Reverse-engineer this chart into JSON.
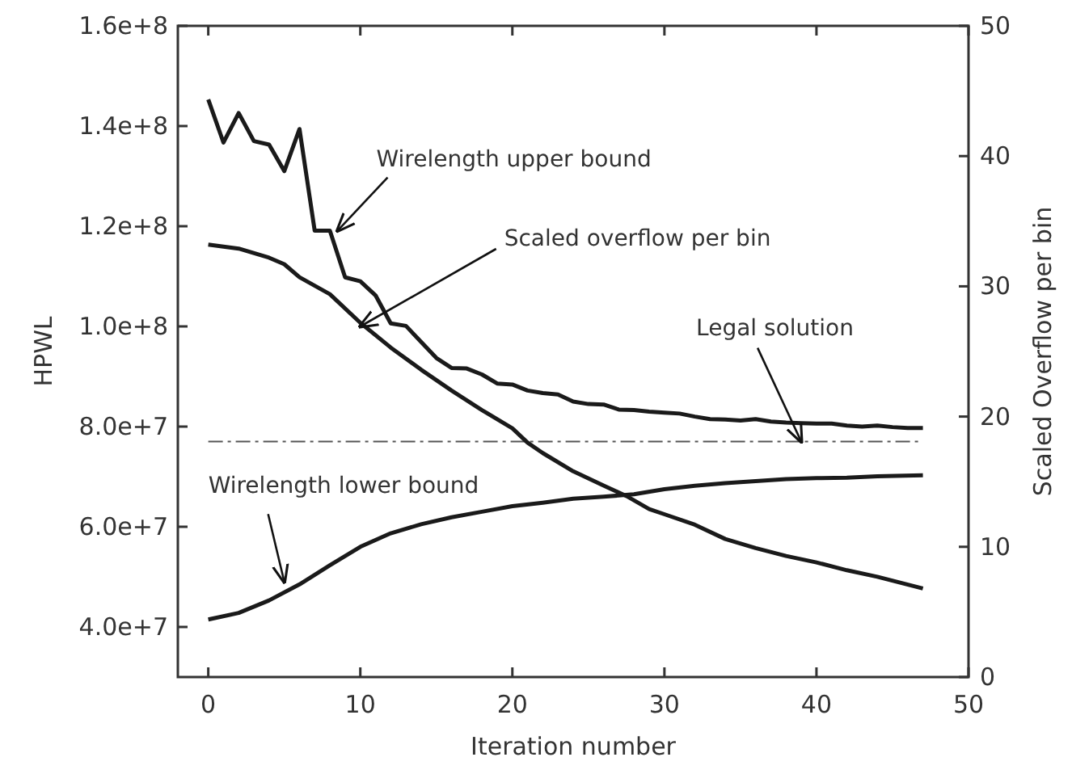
{
  "chart_data": {
    "type": "line",
    "xlabel": "Iteration number",
    "ylabel": "HPWL",
    "y2label": "Scaled Overflow per bin",
    "xlim": [
      -2,
      50
    ],
    "xticks": [
      0,
      10,
      20,
      30,
      40,
      50
    ],
    "ylim": [
      30000000,
      160000000
    ],
    "yticks": [
      {
        "value": 40000000,
        "label": "4.0e+7"
      },
      {
        "value": 60000000,
        "label": "6.0e+7"
      },
      {
        "value": 80000000,
        "label": "8.0e+7"
      },
      {
        "value": 100000000,
        "label": "1.0e+8"
      },
      {
        "value": 120000000,
        "label": "1.2e+8"
      },
      {
        "value": 140000000,
        "label": "1.4e+8"
      },
      {
        "value": 160000000,
        "label": "1.6e+8"
      }
    ],
    "y2lim": [
      0,
      50
    ],
    "y2ticks": [
      0,
      10,
      20,
      30,
      40,
      50
    ],
    "grid": false,
    "marker": "none",
    "line_style": "solid",
    "series": [
      {
        "color": "#1a1a1a",
        "x": [
          0,
          1,
          2,
          3,
          4,
          5,
          6,
          7,
          8,
          9,
          10,
          11,
          12,
          13,
          14,
          15,
          16,
          17,
          18,
          19,
          20,
          21,
          22,
          23,
          24,
          25,
          26,
          27,
          28,
          29,
          30,
          31,
          32,
          33,
          34,
          35,
          36,
          37,
          38,
          39,
          40,
          41,
          42,
          43,
          44,
          45,
          46,
          47
        ],
        "values": [
          145300000,
          136700000,
          142600000,
          137000000,
          136300000,
          131000000,
          139400000,
          119100000,
          119100000,
          109800000,
          109000000,
          106200000,
          100600000,
          100100000,
          96900000,
          93700000,
          91700000,
          91600000,
          90400000,
          88600000,
          88400000,
          87200000,
          86700000,
          86400000,
          85000000,
          84500000,
          84400000,
          83400000,
          83300000,
          83000000,
          82800000,
          82600000,
          82000000,
          81500000,
          81400000,
          81200000,
          81500000,
          81000000,
          80800000,
          80700000,
          80600000,
          80600000,
          80200000,
          80000000,
          80200000,
          79900000,
          79700000,
          79700000
        ]
      },
      {
        "color": "#1a1a1a",
        "x": [
          0,
          2,
          4,
          6,
          8,
          10,
          12,
          14,
          16,
          18,
          20,
          22,
          24,
          26,
          28,
          30,
          32,
          34,
          36,
          38,
          40,
          42,
          44,
          47
        ],
        "values": [
          41500000,
          42800000,
          45300000,
          48500000,
          52300000,
          56000000,
          58700000,
          60500000,
          61900000,
          63000000,
          64100000,
          64800000,
          65600000,
          66000000,
          66500000,
          67500000,
          68200000,
          68700000,
          69100000,
          69500000,
          69700000,
          69800000,
          70100000,
          70300000
        ]
      },
      {
        "color": "#1a1a1a",
        "axis": "y2",
        "x": [
          0,
          2,
          4,
          5,
          6,
          8,
          10,
          12,
          14,
          16,
          18,
          20,
          21,
          22,
          24,
          26,
          27.5,
          29,
          30,
          32,
          34,
          36,
          38,
          40,
          42,
          44,
          47
        ],
        "values": [
          33.2,
          32.9,
          32.2,
          31.7,
          30.7,
          29.4,
          27.2,
          25.3,
          23.6,
          22.0,
          20.5,
          19.1,
          18.0,
          17.2,
          15.8,
          14.7,
          13.9,
          12.9,
          12.5,
          11.7,
          10.6,
          9.9,
          9.3,
          8.8,
          8.2,
          7.7,
          6.8
        ]
      }
    ],
    "ref_lines": [
      {
        "axis": "y",
        "value": 77000000,
        "color": "#555555",
        "line_style": "dashdot"
      }
    ],
    "annotations": [
      {
        "text": "Wirelength upper bound",
        "x": 8.5,
        "y": 119100000
      },
      {
        "text": "Scaled overflow per bin",
        "x": 10,
        "y": 100000000
      },
      {
        "text": "Legal solution",
        "x": 39,
        "y": 77000000
      },
      {
        "text": "Wirelength lower bound",
        "x": 5,
        "y": 49000000
      }
    ]
  }
}
